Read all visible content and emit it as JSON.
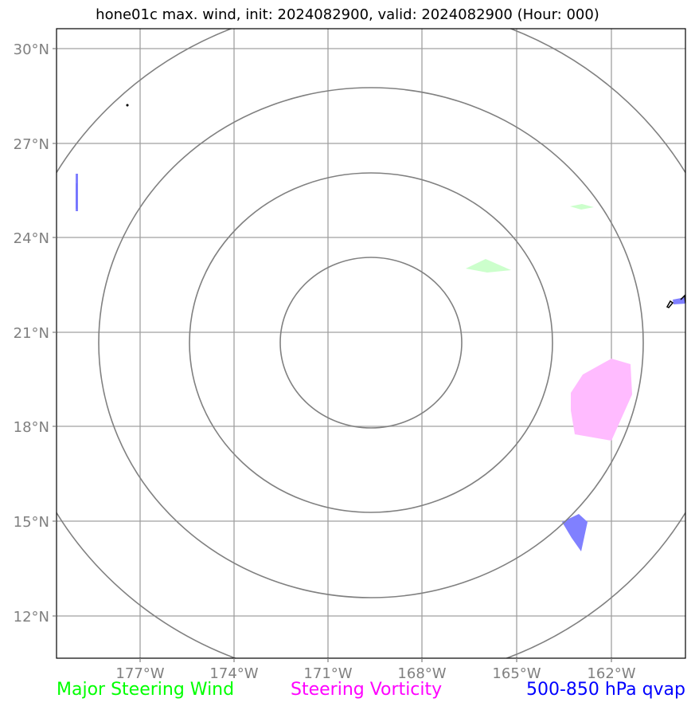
{
  "title": "hone01c max. wind, init: 2024082900, valid: 2024082900 (Hour: 000)",
  "axes": {
    "lat_labels": [
      "30°N",
      "27°N",
      "24°N",
      "21°N",
      "18°N",
      "15°N",
      "12°N"
    ],
    "lon_labels": [
      "177°W",
      "174°W",
      "171°W",
      "168°W",
      "165°W",
      "162°W"
    ]
  },
  "legend": {
    "steering_wind": {
      "label": "Major Steering Wind",
      "color": "#00ff00"
    },
    "steering_vorticity": {
      "label": "Steering Vorticity",
      "color": "#ff00ff"
    },
    "qvap": {
      "label": "500-850 hPa qvap",
      "color": "#0000ff"
    }
  },
  "colors": {
    "gridline": "#a0a0a0",
    "range_ring": "#808080",
    "tick_label": "#808080",
    "vorticity_fill": "#ffbbff",
    "wind_fill": "#ccffcc",
    "qvap_fill": "#8080ff",
    "coastline": "#000000"
  },
  "features": {
    "range_rings": 4,
    "center": "170°W 20.5°N"
  }
}
